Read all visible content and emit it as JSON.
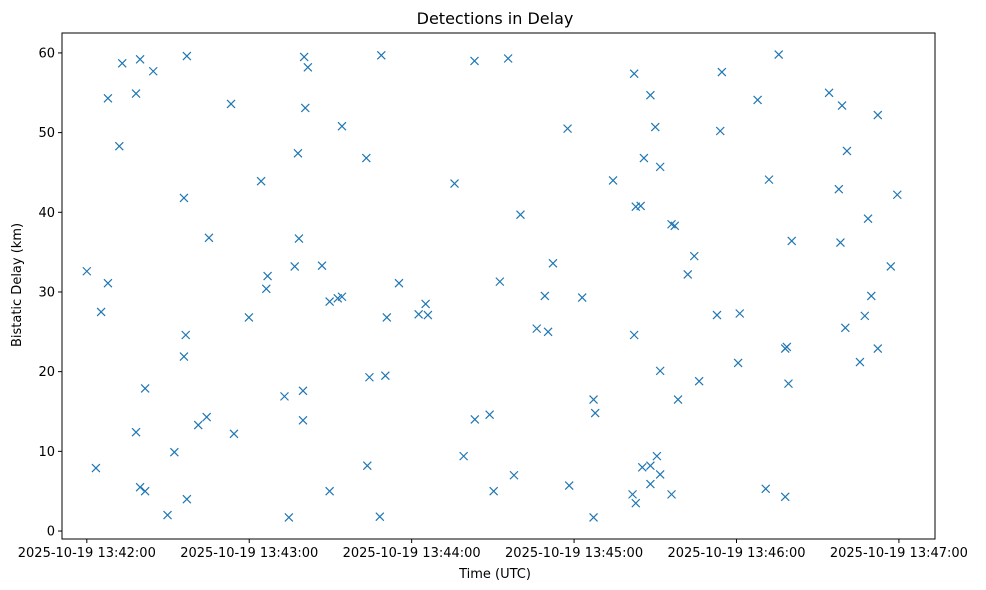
{
  "chart_data": {
    "type": "scatter",
    "title": "Detections in Delay",
    "xlabel": "Time (UTC)",
    "ylabel": "Bistatic Delay (km)",
    "marker": "x",
    "color": "#1f77b4",
    "grid": false,
    "xlim": [
      -0.1528,
      5.2222
    ],
    "ylim": [
      -1.0,
      62.5
    ],
    "xticks": [
      0,
      1,
      2,
      3,
      4,
      5
    ],
    "xtick_labels": [
      "2025-10-19 13:42:00",
      "2025-10-19 13:43:00",
      "2025-10-19 13:44:00",
      "2025-10-19 13:45:00",
      "2025-10-19 13:46:00",
      "2025-10-19 13:47:00"
    ],
    "yticks": [
      0,
      10,
      20,
      30,
      40,
      50,
      60
    ],
    "ytick_labels": [
      "0",
      "10",
      "20",
      "30",
      "40",
      "50",
      "60"
    ],
    "x_unit_note": "x values are minutes after 2025-10-19 13:42:00",
    "points": [
      [
        0.0,
        32.6
      ],
      [
        0.056,
        7.9
      ],
      [
        0.088,
        27.5
      ],
      [
        0.13,
        31.1
      ],
      [
        0.13,
        54.3
      ],
      [
        0.2,
        48.3
      ],
      [
        0.218,
        58.7
      ],
      [
        0.303,
        12.4
      ],
      [
        0.303,
        54.9
      ],
      [
        0.328,
        59.2
      ],
      [
        0.328,
        5.5
      ],
      [
        0.359,
        5.0
      ],
      [
        0.359,
        17.9
      ],
      [
        0.409,
        57.7
      ],
      [
        0.497,
        2.0
      ],
      [
        0.539,
        9.9
      ],
      [
        0.598,
        41.8
      ],
      [
        0.598,
        21.9
      ],
      [
        0.609,
        24.6
      ],
      [
        0.616,
        4.0
      ],
      [
        0.616,
        59.6
      ],
      [
        0.686,
        13.3
      ],
      [
        0.738,
        14.3
      ],
      [
        0.752,
        36.8
      ],
      [
        0.888,
        53.6
      ],
      [
        0.906,
        12.2
      ],
      [
        0.998,
        26.8
      ],
      [
        1.073,
        43.9
      ],
      [
        1.105,
        30.4
      ],
      [
        1.113,
        32.0
      ],
      [
        1.217,
        16.9
      ],
      [
        1.244,
        1.7
      ],
      [
        1.28,
        33.2
      ],
      [
        1.3,
        47.4
      ],
      [
        1.306,
        36.7
      ],
      [
        1.331,
        17.6
      ],
      [
        1.331,
        13.9
      ],
      [
        1.338,
        59.5
      ],
      [
        1.345,
        53.1
      ],
      [
        1.361,
        58.2
      ],
      [
        1.448,
        33.3
      ],
      [
        1.495,
        28.8
      ],
      [
        1.495,
        5.0
      ],
      [
        1.545,
        29.2
      ],
      [
        1.571,
        29.4
      ],
      [
        1.571,
        50.8
      ],
      [
        1.721,
        46.8
      ],
      [
        1.727,
        8.2
      ],
      [
        1.74,
        19.3
      ],
      [
        1.804,
        1.8
      ],
      [
        1.813,
        59.7
      ],
      [
        1.838,
        19.5
      ],
      [
        1.847,
        26.8
      ],
      [
        1.922,
        31.1
      ],
      [
        2.043,
        27.2
      ],
      [
        2.086,
        28.5
      ],
      [
        2.1,
        27.1
      ],
      [
        2.264,
        43.6
      ],
      [
        2.32,
        9.4
      ],
      [
        2.387,
        59.0
      ],
      [
        2.389,
        14.0
      ],
      [
        2.48,
        14.6
      ],
      [
        2.505,
        5.0
      ],
      [
        2.543,
        31.3
      ],
      [
        2.594,
        59.3
      ],
      [
        2.63,
        7.0
      ],
      [
        2.67,
        39.7
      ],
      [
        2.77,
        25.4
      ],
      [
        2.82,
        29.5
      ],
      [
        2.84,
        25.0
      ],
      [
        2.87,
        33.6
      ],
      [
        2.96,
        50.5
      ],
      [
        2.97,
        5.7
      ],
      [
        3.05,
        29.3
      ],
      [
        3.12,
        1.7
      ],
      [
        3.12,
        16.5
      ],
      [
        3.13,
        14.8
      ],
      [
        3.24,
        44.0
      ],
      [
        3.36,
        4.6
      ],
      [
        3.37,
        57.4
      ],
      [
        3.37,
        24.6
      ],
      [
        3.38,
        40.7
      ],
      [
        3.38,
        3.5
      ],
      [
        3.41,
        40.8
      ],
      [
        3.42,
        8.0
      ],
      [
        3.43,
        46.8
      ],
      [
        3.47,
        54.7
      ],
      [
        3.47,
        5.9
      ],
      [
        3.47,
        8.2
      ],
      [
        3.5,
        50.7
      ],
      [
        3.51,
        9.4
      ],
      [
        3.53,
        45.7
      ],
      [
        3.53,
        7.1
      ],
      [
        3.53,
        20.1
      ],
      [
        3.6,
        38.5
      ],
      [
        3.62,
        38.3
      ],
      [
        3.6,
        4.6
      ],
      [
        3.64,
        16.5
      ],
      [
        3.7,
        32.2
      ],
      [
        3.74,
        34.5
      ],
      [
        3.77,
        18.8
      ],
      [
        3.88,
        27.1
      ],
      [
        3.91,
        57.6
      ],
      [
        3.9,
        50.2
      ],
      [
        4.01,
        21.1
      ],
      [
        4.02,
        27.3
      ],
      [
        4.13,
        54.1
      ],
      [
        4.18,
        5.3
      ],
      [
        4.2,
        44.1
      ],
      [
        4.26,
        59.8
      ],
      [
        4.3,
        4.3
      ],
      [
        4.3,
        22.9
      ],
      [
        4.31,
        23.1
      ],
      [
        4.32,
        18.5
      ],
      [
        4.34,
        36.4
      ],
      [
        4.57,
        55.0
      ],
      [
        4.63,
        42.9
      ],
      [
        4.64,
        36.2
      ],
      [
        4.65,
        53.4
      ],
      [
        4.67,
        25.5
      ],
      [
        4.68,
        47.7
      ],
      [
        4.76,
        21.2
      ],
      [
        4.79,
        27.0
      ],
      [
        4.81,
        39.2
      ],
      [
        4.83,
        29.5
      ],
      [
        4.87,
        22.9
      ],
      [
        4.87,
        52.2
      ],
      [
        4.95,
        33.2
      ],
      [
        4.99,
        42.2
      ]
    ]
  }
}
